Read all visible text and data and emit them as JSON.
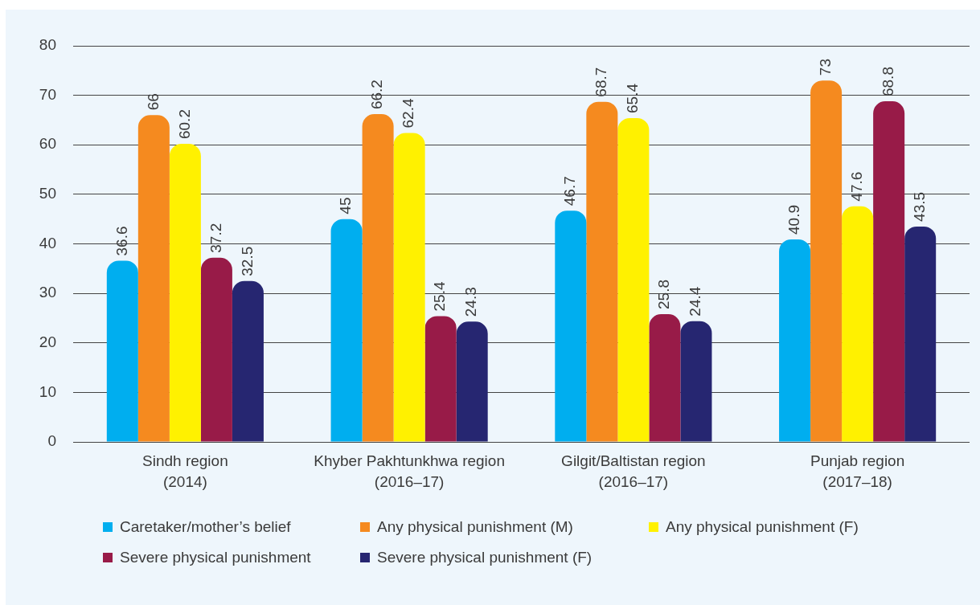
{
  "chart_data": {
    "type": "bar",
    "categories": [
      "Sindh region\n(2014)",
      "Khyber Pakhtunkhwa region\n(2016–17)",
      "Gilgit/Baltistan region\n(2016–17)",
      "Punjab region\n(2017–18)"
    ],
    "series": [
      {
        "name": "Caretaker/mother’s belief",
        "color": "#00aeef",
        "values": [
          36.6,
          45,
          46.7,
          40.9
        ]
      },
      {
        "name": "Any physical punishment (M)",
        "color": "#f58a1f",
        "values": [
          66,
          66.2,
          68.7,
          73
        ]
      },
      {
        "name": "Any physical punishment (F)",
        "color": "#fff100",
        "values": [
          60.2,
          62.4,
          65.4,
          47.6
        ]
      },
      {
        "name": "Severe physical punishment",
        "color": "#981b48",
        "values": [
          37.2,
          25.4,
          25.8,
          68.8
        ]
      },
      {
        "name": "Severe physical punishment (F)",
        "color": "#262671",
        "values": [
          32.5,
          24.3,
          24.4,
          43.5
        ]
      }
    ],
    "ylim": [
      0,
      80
    ],
    "yticks": [
      0,
      10,
      20,
      30,
      40,
      50,
      60,
      70,
      80
    ],
    "grid": "y",
    "legend": "bottom",
    "data_labels": true
  }
}
